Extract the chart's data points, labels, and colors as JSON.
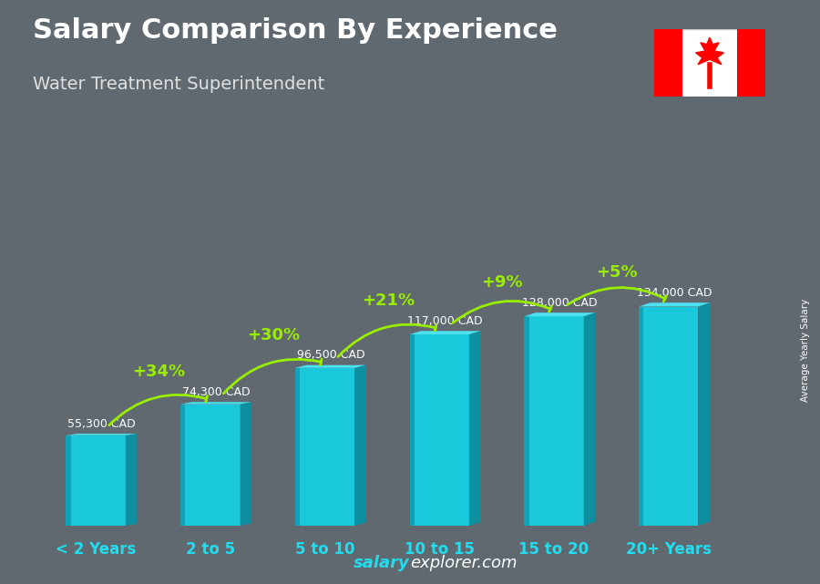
{
  "title": "Salary Comparison By Experience",
  "subtitle": "Water Treatment Superintendent",
  "categories": [
    "< 2 Years",
    "2 to 5",
    "5 to 10",
    "10 to 15",
    "15 to 20",
    "20+ Years"
  ],
  "values": [
    55300,
    74300,
    96500,
    117000,
    128000,
    134000
  ],
  "labels": [
    "55,300 CAD",
    "74,300 CAD",
    "96,500 CAD",
    "117,000 CAD",
    "128,000 CAD",
    "134,000 CAD"
  ],
  "pct_labels": [
    "+34%",
    "+30%",
    "+21%",
    "+9%",
    "+5%"
  ],
  "bar_color_face": "#1ac8dc",
  "bar_color_side": "#0e8fa0",
  "bar_color_top": "#4de0ef",
  "bar_color_face2": "#18b8cc",
  "bg_color": "#606870",
  "bg_dark": "#404850",
  "title_color": "#ffffff",
  "subtitle_color": "#e0e0e0",
  "label_color": "#ffffff",
  "pct_color": "#99ee00",
  "xlabel_color": "#22ddee",
  "footer_color_salary": "#22ddee",
  "footer_color_explorer": "#ffffff",
  "ylabel_text": "Average Yearly Salary",
  "figsize": [
    9.0,
    6.41
  ],
  "dpi": 100
}
